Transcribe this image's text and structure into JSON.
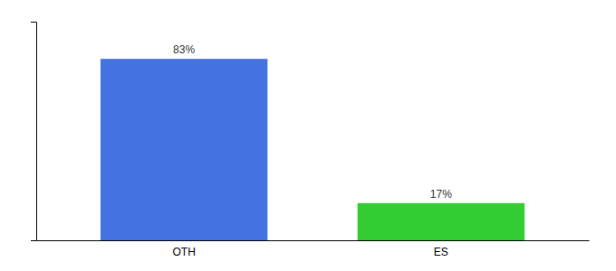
{
  "chart_data": {
    "type": "bar",
    "categories": [
      "OTH",
      "ES"
    ],
    "values": [
      83,
      17
    ],
    "value_labels": [
      "83%",
      "17%"
    ],
    "colors": [
      "#4472e0",
      "#33cc33"
    ],
    "ylim": [
      0,
      100
    ],
    "data_labels": true,
    "tick_labels": "x"
  }
}
